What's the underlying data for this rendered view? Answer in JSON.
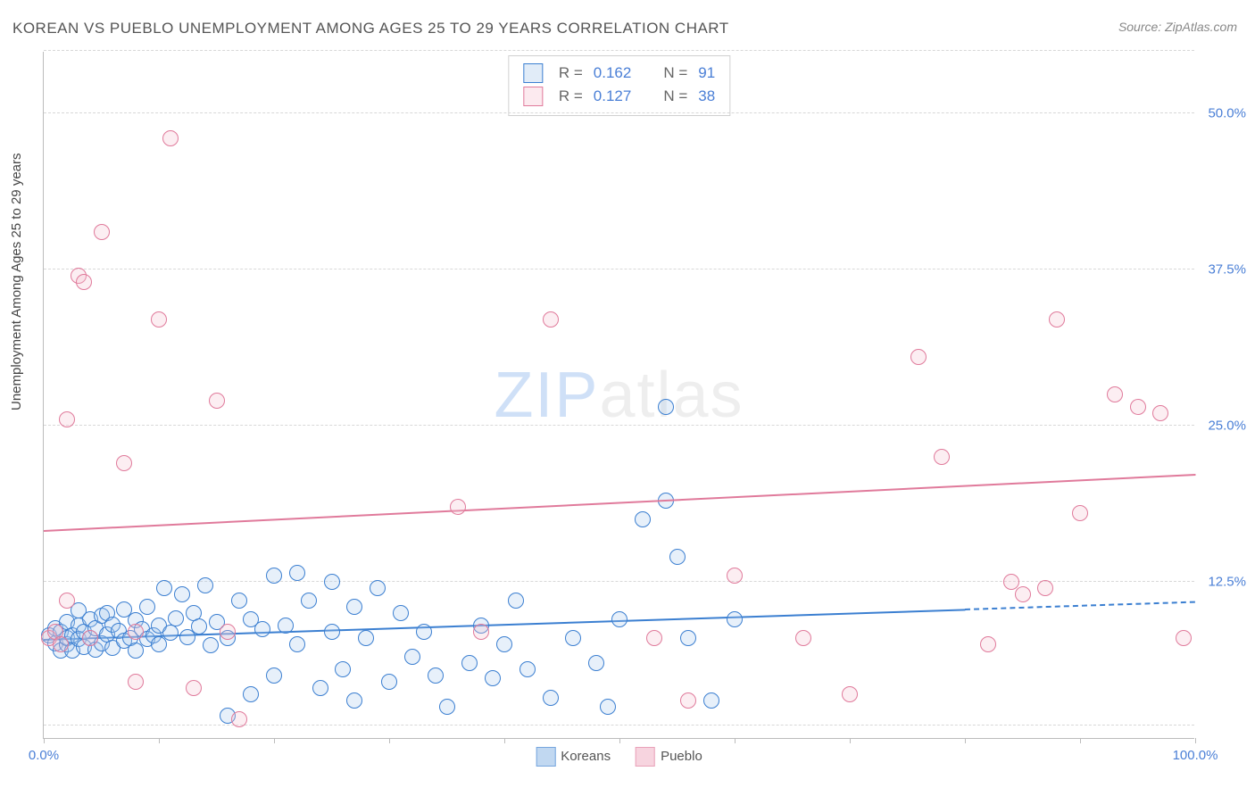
{
  "title": "KOREAN VS PUEBLO UNEMPLOYMENT AMONG AGES 25 TO 29 YEARS CORRELATION CHART",
  "source_prefix": "Source: ",
  "source_name": "ZipAtlas.com",
  "ylabel": "Unemployment Among Ages 25 to 29 years",
  "watermark_a": "ZIP",
  "watermark_b": "atlas",
  "chart": {
    "type": "scatter",
    "background_color": "#ffffff",
    "grid_color": "#d8d8d8",
    "axis_color": "#bcbcbc",
    "tick_label_color": "#4a7fd6",
    "xlim": [
      0,
      100
    ],
    "ylim": [
      0,
      55
    ],
    "x_ticks": [
      0,
      10,
      20,
      30,
      40,
      50,
      60,
      70,
      80,
      90,
      100
    ],
    "x_tick_labels": {
      "0": "0.0%",
      "100": "100.0%"
    },
    "y_gridlines": [
      1,
      12.5,
      25,
      37.5,
      50,
      55
    ],
    "y_tick_labels": {
      "12.5": "12.5%",
      "25": "25.0%",
      "37.5": "37.5%",
      "50": "50.0%"
    },
    "marker_radius": 9,
    "marker_border_width": 1.5,
    "marker_fill_opacity": 0.28,
    "series": [
      {
        "name": "Koreans",
        "color": "#3b7fd1",
        "fill": "#a8c8ec",
        "R": "0.162",
        "N": "91",
        "trend": {
          "y_at_x0": 7.8,
          "y_at_x100": 10.8,
          "solid_until_x": 80
        },
        "points": [
          [
            0.5,
            8.2
          ],
          [
            1,
            7.6
          ],
          [
            1,
            8.8
          ],
          [
            1.5,
            7.0
          ],
          [
            1.5,
            8.5
          ],
          [
            2,
            9.3
          ],
          [
            2,
            7.5
          ],
          [
            2,
            8.0
          ],
          [
            2.5,
            8.2
          ],
          [
            2.5,
            7.0
          ],
          [
            3,
            9.0
          ],
          [
            3,
            10.2
          ],
          [
            3,
            7.9
          ],
          [
            3.5,
            8.5
          ],
          [
            3.5,
            7.3
          ],
          [
            4,
            8.0
          ],
          [
            4,
            9.5
          ],
          [
            4.5,
            7.1
          ],
          [
            4.5,
            8.8
          ],
          [
            5,
            9.8
          ],
          [
            5,
            7.6
          ],
          [
            5.5,
            8.3
          ],
          [
            5.5,
            10.0
          ],
          [
            6,
            7.2
          ],
          [
            6,
            9.1
          ],
          [
            6.5,
            8.6
          ],
          [
            7,
            7.8
          ],
          [
            7,
            10.3
          ],
          [
            7.5,
            8.0
          ],
          [
            8,
            9.4
          ],
          [
            8,
            7.0
          ],
          [
            8.5,
            8.7
          ],
          [
            9,
            10.5
          ],
          [
            9,
            7.9
          ],
          [
            9.5,
            8.2
          ],
          [
            10,
            9.0
          ],
          [
            10,
            7.5
          ],
          [
            10.5,
            12.0
          ],
          [
            11,
            8.4
          ],
          [
            11.5,
            9.6
          ],
          [
            12,
            11.5
          ],
          [
            12.5,
            8.1
          ],
          [
            13,
            10.0
          ],
          [
            13.5,
            8.9
          ],
          [
            14,
            12.2
          ],
          [
            14.5,
            7.4
          ],
          [
            15,
            9.3
          ],
          [
            16,
            1.8
          ],
          [
            16,
            8.0
          ],
          [
            17,
            11.0
          ],
          [
            18,
            3.5
          ],
          [
            18,
            9.5
          ],
          [
            19,
            8.7
          ],
          [
            20,
            13.0
          ],
          [
            20,
            5.0
          ],
          [
            21,
            9.0
          ],
          [
            22,
            13.2
          ],
          [
            22,
            7.5
          ],
          [
            23,
            11.0
          ],
          [
            24,
            4.0
          ],
          [
            25,
            12.5
          ],
          [
            25,
            8.5
          ],
          [
            26,
            5.5
          ],
          [
            27,
            3.0
          ],
          [
            27,
            10.5
          ],
          [
            28,
            8.0
          ],
          [
            29,
            12.0
          ],
          [
            30,
            4.5
          ],
          [
            31,
            10.0
          ],
          [
            32,
            6.5
          ],
          [
            33,
            8.5
          ],
          [
            34,
            5.0
          ],
          [
            35,
            2.5
          ],
          [
            37,
            6.0
          ],
          [
            38,
            9.0
          ],
          [
            39,
            4.8
          ],
          [
            40,
            7.5
          ],
          [
            41,
            11.0
          ],
          [
            42,
            5.5
          ],
          [
            44,
            3.2
          ],
          [
            46,
            8.0
          ],
          [
            48,
            6.0
          ],
          [
            49,
            2.5
          ],
          [
            50,
            9.5
          ],
          [
            52,
            17.5
          ],
          [
            54,
            26.5
          ],
          [
            54,
            19.0
          ],
          [
            55,
            14.5
          ],
          [
            56,
            8.0
          ],
          [
            58,
            3.0
          ],
          [
            60,
            9.5
          ]
        ]
      },
      {
        "name": "Pueblo",
        "color": "#e07a9b",
        "fill": "#f5c3d2",
        "R": "0.127",
        "N": "38",
        "trend": {
          "y_at_x0": 16.5,
          "y_at_x100": 21.0,
          "solid_until_x": 100
        },
        "points": [
          [
            0.5,
            8.0
          ],
          [
            1,
            8.5
          ],
          [
            1.5,
            7.5
          ],
          [
            2,
            11.0
          ],
          [
            2,
            25.5
          ],
          [
            3,
            37.0
          ],
          [
            3.5,
            36.5
          ],
          [
            4,
            8.0
          ],
          [
            5,
            40.5
          ],
          [
            7,
            22.0
          ],
          [
            8,
            8.5
          ],
          [
            8,
            4.5
          ],
          [
            10,
            33.5
          ],
          [
            11,
            48.0
          ],
          [
            13,
            4.0
          ],
          [
            15,
            27.0
          ],
          [
            16,
            8.5
          ],
          [
            17,
            1.5
          ],
          [
            36,
            18.5
          ],
          [
            38,
            8.5
          ],
          [
            44,
            33.5
          ],
          [
            53,
            8.0
          ],
          [
            56,
            3.0
          ],
          [
            60,
            13.0
          ],
          [
            66,
            8.0
          ],
          [
            70,
            3.5
          ],
          [
            76,
            30.5
          ],
          [
            78,
            22.5
          ],
          [
            82,
            7.5
          ],
          [
            84,
            12.5
          ],
          [
            85,
            11.5
          ],
          [
            87,
            12.0
          ],
          [
            88,
            33.5
          ],
          [
            90,
            18.0
          ],
          [
            93,
            27.5
          ],
          [
            95,
            26.5
          ],
          [
            97,
            26.0
          ],
          [
            99,
            8.0
          ]
        ]
      }
    ]
  },
  "legend": {
    "items": [
      {
        "label": "Koreans",
        "fill": "#a8c8ec",
        "border": "#3b7fd1"
      },
      {
        "label": "Pueblo",
        "fill": "#f5c3d2",
        "border": "#e07a9b"
      }
    ]
  },
  "stats_labels": {
    "R": "R =",
    "N": "N ="
  }
}
